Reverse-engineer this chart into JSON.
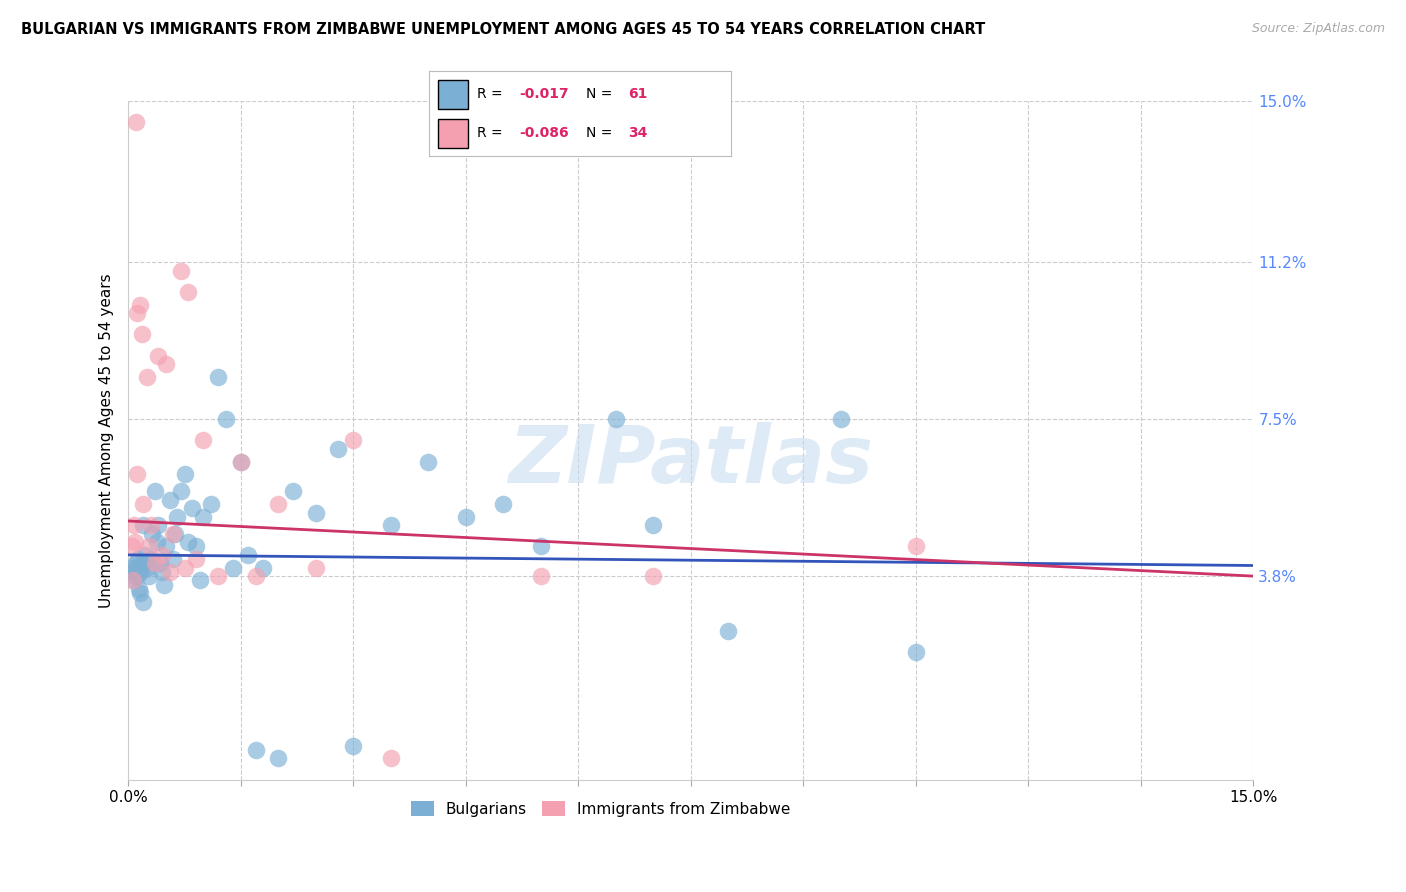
{
  "title": "BULGARIAN VS IMMIGRANTS FROM ZIMBABWE UNEMPLOYMENT AMONG AGES 45 TO 54 YEARS CORRELATION CHART",
  "source": "Source: ZipAtlas.com",
  "ylabel": "Unemployment Among Ages 45 to 54 years",
  "xmin": 0.0,
  "xmax": 15.0,
  "ymin": -1.0,
  "ymax": 15.0,
  "yticks": [
    3.8,
    7.5,
    11.2,
    15.0
  ],
  "ytick_labels": [
    "3.8%",
    "7.5%",
    "11.2%",
    "15.0%"
  ],
  "grid_color": "#cccccc",
  "bg_color": "#ffffff",
  "blue_color": "#7bafd4",
  "pink_color": "#f4a0b0",
  "blue_line_color": "#3355bb",
  "pink_line_color": "#cc3366",
  "legend_blue_R": "-0.017",
  "legend_blue_N": "61",
  "legend_pink_R": "-0.086",
  "legend_pink_N": "34",
  "legend_label_blue": "Bulgarians",
  "legend_label_pink": "Immigrants from Zimbabwe",
  "watermark": "ZIPatlas",
  "blue_x": [
    0.05,
    0.08,
    0.1,
    0.12,
    0.13,
    0.15,
    0.17,
    0.18,
    0.2,
    0.22,
    0.25,
    0.27,
    0.3,
    0.32,
    0.35,
    0.38,
    0.4,
    0.42,
    0.45,
    0.48,
    0.5,
    0.55,
    0.6,
    0.62,
    0.65,
    0.7,
    0.75,
    0.8,
    0.85,
    0.9,
    0.95,
    1.0,
    1.1,
    1.2,
    1.3,
    1.4,
    1.5,
    1.6,
    1.7,
    1.8,
    2.0,
    2.2,
    2.5,
    2.8,
    3.0,
    3.5,
    4.0,
    4.5,
    5.0,
    5.5,
    6.5,
    7.0,
    8.0,
    9.5,
    10.5,
    0.06,
    0.09,
    0.11,
    0.14,
    0.16,
    0.19
  ],
  "blue_y": [
    4.0,
    3.9,
    4.1,
    3.8,
    4.2,
    3.9,
    4.0,
    4.1,
    5.0,
    4.3,
    4.0,
    3.8,
    4.2,
    4.8,
    5.8,
    4.6,
    5.0,
    4.1,
    3.9,
    3.6,
    4.5,
    5.6,
    4.2,
    4.8,
    5.2,
    5.8,
    6.2,
    4.6,
    5.4,
    4.5,
    3.7,
    5.2,
    5.5,
    8.5,
    7.5,
    4.0,
    6.5,
    4.3,
    -0.3,
    4.0,
    -0.5,
    5.8,
    5.3,
    6.8,
    -0.2,
    5.0,
    6.5,
    5.2,
    5.5,
    4.5,
    7.5,
    5.0,
    2.5,
    7.5,
    2.0,
    3.7,
    3.8,
    4.0,
    3.5,
    3.4,
    3.2
  ],
  "pink_x": [
    0.05,
    0.08,
    0.1,
    0.12,
    0.15,
    0.18,
    0.2,
    0.25,
    0.28,
    0.3,
    0.35,
    0.4,
    0.45,
    0.5,
    0.55,
    0.6,
    0.7,
    0.75,
    0.8,
    0.9,
    1.0,
    1.2,
    1.5,
    1.7,
    2.0,
    2.5,
    3.0,
    3.5,
    5.5,
    7.0,
    10.5,
    0.06,
    0.09,
    0.11
  ],
  "pink_y": [
    4.5,
    5.0,
    14.5,
    10.0,
    10.2,
    9.5,
    5.5,
    8.5,
    4.5,
    5.0,
    4.1,
    9.0,
    4.3,
    8.8,
    3.9,
    4.8,
    11.0,
    4.0,
    10.5,
    4.2,
    7.0,
    3.8,
    6.5,
    3.8,
    5.5,
    4.0,
    7.0,
    -0.5,
    3.8,
    3.8,
    4.5,
    3.7,
    4.6,
    6.2
  ]
}
